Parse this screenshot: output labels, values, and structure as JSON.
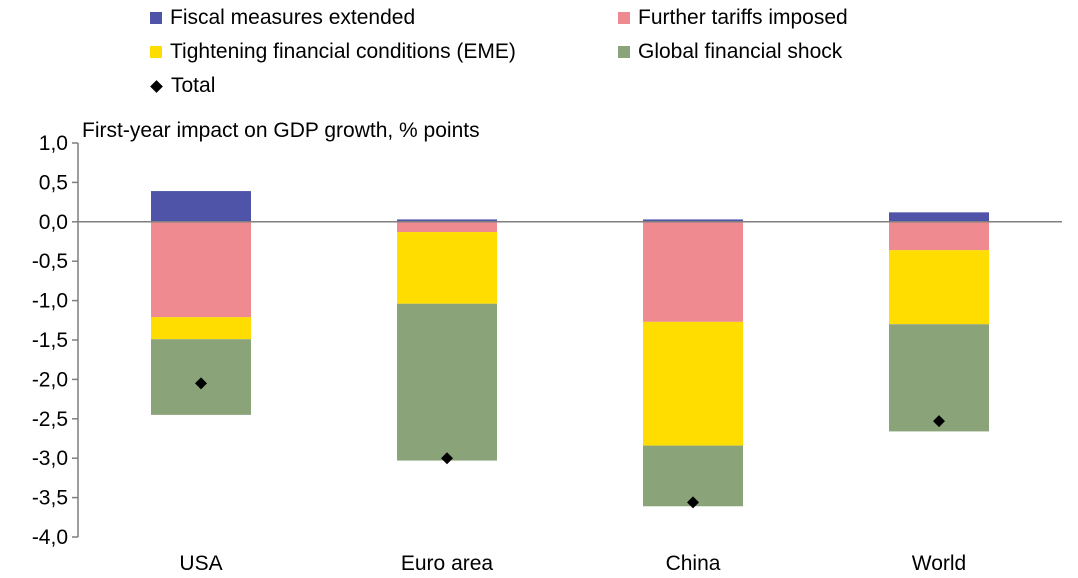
{
  "legend": {
    "fiscal": "Fiscal measures extended",
    "tariffs": "Further tariffs imposed",
    "tightening": "Tightening financial conditions (EME)",
    "shock": "Global financial shock",
    "total": "Total"
  },
  "chart_data": {
    "type": "bar",
    "stacked": true,
    "title": "First-year impact on GDP growth, % points",
    "xlabel": "",
    "ylabel": "",
    "ylim": [
      -4.0,
      1.0
    ],
    "yticks": [
      "1,0",
      "0,5",
      "0,0",
      "-0,5",
      "-1,0",
      "-1,5",
      "-2,0",
      "-2,5",
      "-3,0",
      "-3,5",
      "-4,0"
    ],
    "grid": false,
    "legend_position": "top",
    "categories": [
      "USA",
      "Euro area",
      "China",
      "World"
    ],
    "series": [
      {
        "name": "Fiscal measures extended",
        "color": "#4f54a8",
        "values": [
          0.39,
          0.03,
          0.03,
          0.12
        ]
      },
      {
        "name": "Further tariffs imposed",
        "color": "#ef8b90",
        "values": [
          -1.21,
          -0.13,
          -1.27,
          -0.36
        ]
      },
      {
        "name": "Tightening financial conditions (EME)",
        "color": "#ffdd00",
        "values": [
          -0.28,
          -0.91,
          -1.57,
          -0.94
        ]
      },
      {
        "name": "Global financial shock",
        "color": "#8aa379",
        "values": [
          -0.96,
          -1.99,
          -0.77,
          -1.36
        ]
      }
    ],
    "total": {
      "name": "Total",
      "values": [
        -2.05,
        -3.0,
        -3.56,
        -2.53
      ]
    }
  }
}
